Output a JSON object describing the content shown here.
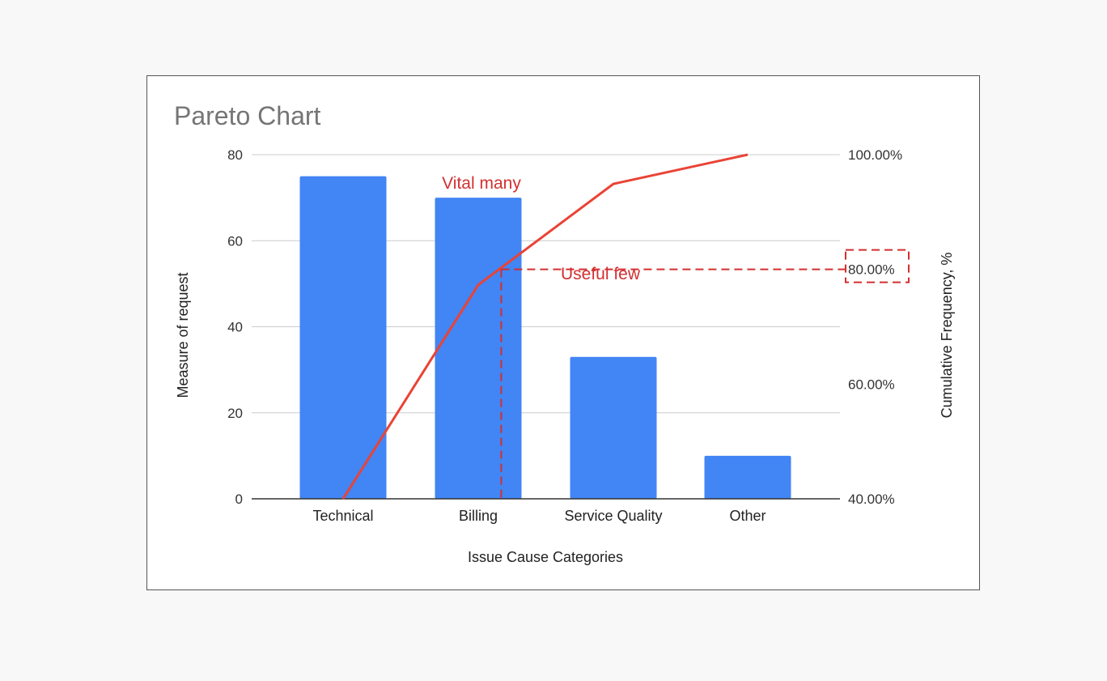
{
  "chart_data": {
    "type": "bar",
    "title": "Pareto Chart",
    "xlabel": "Issue Cause Categories",
    "ylabel": "Measure of request",
    "y2label": "Cumulative Frequency, %",
    "categories": [
      "Technical",
      "Billing",
      "Service Quality",
      "Other"
    ],
    "series": [
      {
        "type": "bar",
        "values": [
          75,
          70,
          33,
          10
        ]
      },
      {
        "type": "line",
        "axis": "right",
        "values": [
          40.0,
          77.3,
          94.9,
          100.0
        ]
      }
    ],
    "ylim": [
      0,
      80
    ],
    "yticks": [
      0,
      20,
      40,
      60,
      80
    ],
    "y2lim": [
      40,
      100
    ],
    "y2ticks": [
      "100.00%",
      "80.00%",
      "60.00%",
      "40.00%"
    ],
    "y2tick_values": [
      100,
      80,
      60,
      40
    ],
    "grid": true,
    "legend": "none",
    "annotations": [
      {
        "text": "Vital many",
        "color": "#d32f2f"
      },
      {
        "text": "Useful few",
        "color": "#d32f2f"
      }
    ],
    "threshold": {
      "value": 80,
      "axis": "right",
      "category_crossing": 1.17
    },
    "colors": {
      "bar": "#4285f4",
      "line": "#ea4335",
      "annotation": "#d32f2f"
    }
  }
}
